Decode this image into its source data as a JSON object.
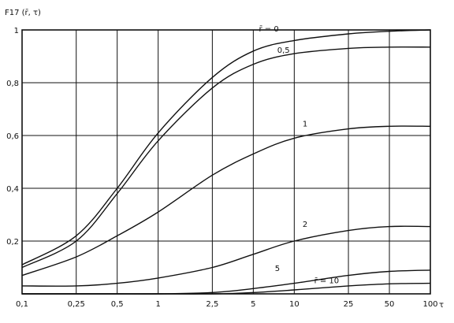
{
  "chart_data": {
    "type": "line",
    "ylabel": "F17 (r̄, τ)",
    "xlabel": "τ",
    "x_scale": "log",
    "xlim": [
      0.1,
      100
    ],
    "ylim": [
      0,
      1
    ],
    "grid": true,
    "x_ticks": [
      {
        "value": 0.1,
        "label": "0,1"
      },
      {
        "value": 0.25,
        "label": "0,25"
      },
      {
        "value": 0.5,
        "label": "0,5"
      },
      {
        "value": 1,
        "label": "1"
      },
      {
        "value": 2.5,
        "label": "2,5"
      },
      {
        "value": 5,
        "label": "5"
      },
      {
        "value": 10,
        "label": "10"
      },
      {
        "value": 25,
        "label": "25"
      },
      {
        "value": 50,
        "label": "50"
      },
      {
        "value": 100,
        "label": "100"
      }
    ],
    "y_ticks": [
      {
        "value": 0.2,
        "label": "0,2"
      },
      {
        "value": 0.4,
        "label": "0,4"
      },
      {
        "value": 0.6,
        "label": "0,6"
      },
      {
        "value": 0.8,
        "label": "0,8"
      },
      {
        "value": 1.0,
        "label": "1"
      }
    ],
    "x": [
      0.1,
      0.25,
      0.5,
      1,
      2.5,
      5,
      10,
      25,
      50,
      100
    ],
    "series": [
      {
        "name": "r̄ = 0",
        "label_at": {
          "x": 5.5,
          "y": 0.985
        },
        "values": [
          0.11,
          0.22,
          0.4,
          0.61,
          0.82,
          0.92,
          0.96,
          0.985,
          0.995,
          1.0
        ]
      },
      {
        "name": "0,5",
        "label_at": {
          "x": 7.5,
          "y": 0.905
        },
        "values": [
          0.1,
          0.2,
          0.38,
          0.58,
          0.78,
          0.87,
          0.91,
          0.93,
          0.935,
          0.935
        ]
      },
      {
        "name": "1",
        "label_at": {
          "x": 11.5,
          "y": 0.625
        },
        "values": [
          0.07,
          0.14,
          0.22,
          0.31,
          0.45,
          0.53,
          0.59,
          0.625,
          0.635,
          0.635
        ]
      },
      {
        "name": "2",
        "label_at": {
          "x": 11.5,
          "y": 0.245
        },
        "values": [
          0.03,
          0.03,
          0.04,
          0.06,
          0.1,
          0.15,
          0.2,
          0.24,
          0.255,
          0.255
        ]
      },
      {
        "name": "5",
        "label_at": {
          "x": 7.2,
          "y": 0.078
        },
        "values": [
          0.0,
          0.0,
          0.0,
          0.0,
          0.005,
          0.02,
          0.04,
          0.07,
          0.085,
          0.09
        ]
      },
      {
        "name": "r̄ = 10",
        "label_at": {
          "x": 14,
          "y": 0.032
        },
        "values": [
          0.0,
          0.0,
          0.0,
          0.0,
          0.0,
          0.005,
          0.015,
          0.03,
          0.038,
          0.04
        ]
      }
    ]
  }
}
